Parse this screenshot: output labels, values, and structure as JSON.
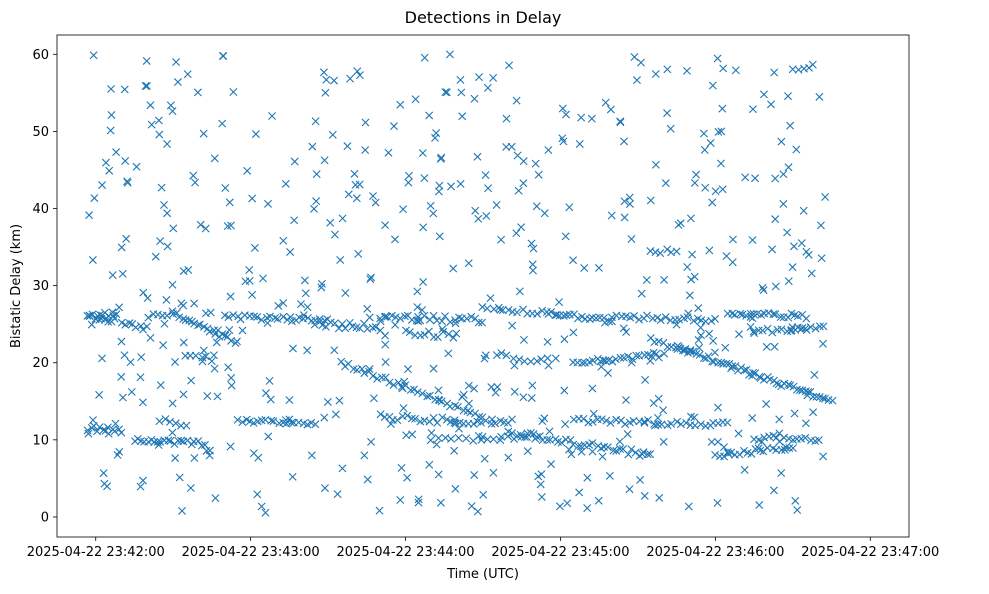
{
  "chart_data": {
    "type": "scatter",
    "title": "Detections in Delay",
    "xlabel": "Time (UTC)",
    "ylabel": "Bistatic Delay (km)",
    "marker": "x",
    "color": "#1f77b4",
    "xlim_seconds": [
      -15,
      315
    ],
    "ylim": [
      -2.6,
      62.5
    ],
    "x_ticks": [
      {
        "t": 0,
        "label": "2025-04-22 23:42:00"
      },
      {
        "t": 60,
        "label": "2025-04-22 23:43:00"
      },
      {
        "t": 120,
        "label": "2025-04-22 23:44:00"
      },
      {
        "t": 180,
        "label": "2025-04-22 23:45:00"
      },
      {
        "t": 240,
        "label": "2025-04-22 23:46:00"
      },
      {
        "t": 300,
        "label": "2025-04-22 23:47:00"
      }
    ],
    "y_ticks": [
      {
        "v": 0,
        "label": "0"
      },
      {
        "v": 10,
        "label": "10"
      },
      {
        "v": 20,
        "label": "20"
      },
      {
        "v": 30,
        "label": "30"
      },
      {
        "v": 40,
        "label": "40"
      },
      {
        "v": 50,
        "label": "50"
      },
      {
        "v": 60,
        "label": "60"
      }
    ],
    "time_range_seconds": [
      -3,
      283
    ],
    "tracks": [
      {
        "t0": -3,
        "t1": 8,
        "y0": 25.5,
        "y1": 26.0,
        "n": 22,
        "jitter": 0.7
      },
      {
        "t0": -3,
        "t1": 10,
        "y0": 11.5,
        "y1": 11.0,
        "n": 12,
        "jitter": 0.4
      },
      {
        "t0": 10,
        "t1": 20,
        "y0": 25.0,
        "y1": 24.5,
        "n": 8,
        "jitter": 0.3
      },
      {
        "t0": 15,
        "t1": 42,
        "y0": 10.0,
        "y1": 9.5,
        "n": 22,
        "jitter": 0.3
      },
      {
        "t0": 20,
        "t1": 30,
        "y0": 26.0,
        "y1": 26.5,
        "n": 6,
        "jitter": 0.3
      },
      {
        "t0": 25,
        "t1": 35,
        "y0": 12.5,
        "y1": 12.0,
        "n": 6,
        "jitter": 0.3
      },
      {
        "t0": 30,
        "t1": 55,
        "y0": 26.5,
        "y1": 22.5,
        "n": 22,
        "jitter": 0.3
      },
      {
        "t0": 35,
        "t1": 45,
        "y0": 21.0,
        "y1": 20.5,
        "n": 6,
        "jitter": 0.3
      },
      {
        "t0": 50,
        "t1": 90,
        "y0": 26.0,
        "y1": 25.5,
        "n": 26,
        "jitter": 0.3
      },
      {
        "t0": 55,
        "t1": 85,
        "y0": 12.5,
        "y1": 12.2,
        "n": 20,
        "jitter": 0.3
      },
      {
        "t0": 85,
        "t1": 110,
        "y0": 25.0,
        "y1": 24.5,
        "n": 18,
        "jitter": 0.5
      },
      {
        "t0": 95,
        "t1": 150,
        "y0": 20.0,
        "y1": 13.0,
        "n": 36,
        "jitter": 0.3
      },
      {
        "t0": 110,
        "t1": 150,
        "y0": 26.0,
        "y1": 25.5,
        "n": 26,
        "jitter": 0.4
      },
      {
        "t0": 110,
        "t1": 160,
        "y0": 13.0,
        "y1": 12.0,
        "n": 30,
        "jitter": 0.4
      },
      {
        "t0": 120,
        "t1": 140,
        "y0": 24.0,
        "y1": 23.5,
        "n": 12,
        "jitter": 0.4
      },
      {
        "t0": 130,
        "t1": 170,
        "y0": 10.0,
        "y1": 10.5,
        "n": 16,
        "jitter": 0.4
      },
      {
        "t0": 150,
        "t1": 175,
        "y0": 27.0,
        "y1": 26.5,
        "n": 14,
        "jitter": 0.3
      },
      {
        "t0": 155,
        "t1": 175,
        "y0": 21.0,
        "y1": 20.0,
        "n": 10,
        "jitter": 0.4
      },
      {
        "t0": 160,
        "t1": 215,
        "y0": 11.0,
        "y1": 8.0,
        "n": 38,
        "jitter": 0.4
      },
      {
        "t0": 175,
        "t1": 200,
        "y0": 26.5,
        "y1": 25.5,
        "n": 18,
        "jitter": 0.3
      },
      {
        "t0": 185,
        "t1": 220,
        "y0": 20.0,
        "y1": 21.0,
        "n": 24,
        "jitter": 0.3
      },
      {
        "t0": 185,
        "t1": 245,
        "y0": 12.5,
        "y1": 12.0,
        "n": 34,
        "jitter": 0.3
      },
      {
        "t0": 200,
        "t1": 240,
        "y0": 26.0,
        "y1": 25.5,
        "n": 24,
        "jitter": 0.3
      },
      {
        "t0": 215,
        "t1": 230,
        "y0": 23.0,
        "y1": 21.5,
        "n": 10,
        "jitter": 0.3
      },
      {
        "t0": 215,
        "t1": 225,
        "y0": 34.5,
        "y1": 34.5,
        "n": 6,
        "jitter": 0.3
      },
      {
        "t0": 225,
        "t1": 285,
        "y0": 22.0,
        "y1": 15.0,
        "n": 54,
        "jitter": 0.3
      },
      {
        "t0": 240,
        "t1": 270,
        "y0": 8.0,
        "y1": 9.0,
        "n": 20,
        "jitter": 0.3
      },
      {
        "t0": 245,
        "t1": 275,
        "y0": 26.5,
        "y1": 26.0,
        "n": 22,
        "jitter": 0.3
      },
      {
        "t0": 255,
        "t1": 275,
        "y0": 24.0,
        "y1": 24.5,
        "n": 12,
        "jitter": 0.3
      },
      {
        "t0": 255,
        "t1": 265,
        "y0": 10.0,
        "y1": 10.5,
        "n": 8,
        "jitter": 0.4
      },
      {
        "t0": 265,
        "t1": 280,
        "y0": 10.0,
        "y1": 10.0,
        "n": 10,
        "jitter": 0.3
      },
      {
        "t0": 270,
        "t1": 282,
        "y0": 24.5,
        "y1": 24.5,
        "n": 8,
        "jitter": 0.3
      },
      {
        "t0": 270,
        "t1": 278,
        "y0": 58.0,
        "y1": 58.5,
        "n": 5,
        "jitter": 0.3
      }
    ],
    "noise": {
      "count": 560,
      "y_range": [
        0.5,
        60
      ],
      "seed": 7
    }
  }
}
